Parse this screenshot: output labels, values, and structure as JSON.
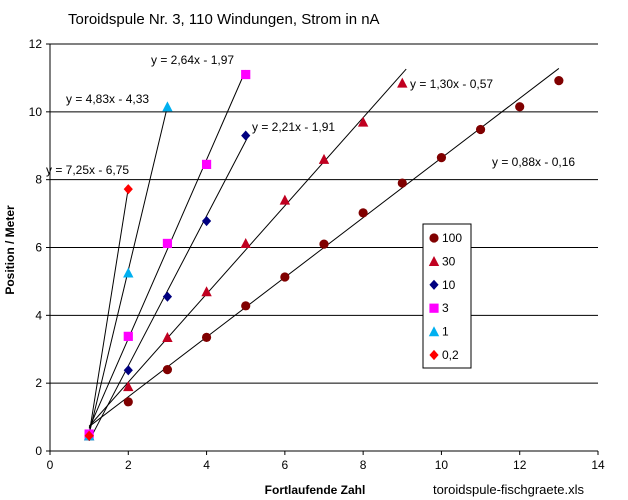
{
  "chart_data": {
    "type": "scatter",
    "title": "Toroidspule Nr. 3, 110 Windungen, Strom in nA",
    "xlabel": "Fortlaufende Zahl",
    "ylabel": "Position / Meter",
    "xlim": [
      0,
      14
    ],
    "ylim": [
      0,
      12
    ],
    "xticks": [
      0,
      2,
      4,
      6,
      8,
      10,
      12,
      14
    ],
    "yticks": [
      0,
      2,
      4,
      6,
      8,
      10,
      12
    ],
    "grid": "horizontal",
    "legend_position": "right-center",
    "footer": "toroidspule-fischgraete.xls",
    "series": [
      {
        "name": "100",
        "marker": "circle",
        "color": "#800000",
        "x": [
          1,
          2,
          3,
          4,
          5,
          6,
          7,
          8,
          9,
          10,
          11,
          12,
          13
        ],
        "y": [
          0.45,
          1.45,
          2.4,
          3.35,
          4.28,
          5.13,
          6.1,
          7.02,
          7.9,
          8.65,
          9.48,
          10.15,
          10.92
        ],
        "trendline": {
          "equation": "y = 0,88x - 0,16",
          "slope": 0.88,
          "intercept": -0.16,
          "x_range": [
            1,
            13.0
          ]
        }
      },
      {
        "name": "30",
        "marker": "triangle",
        "color": "#c00020",
        "x": [
          1,
          2,
          3,
          4,
          5,
          6,
          7,
          8,
          9
        ],
        "y": [
          0.45,
          1.9,
          3.35,
          4.7,
          6.12,
          7.4,
          8.6,
          9.7,
          10.85
        ],
        "trendline": {
          "equation": "y = 1,30x - 0,57",
          "slope": 1.3,
          "intercept": -0.57,
          "x_range": [
            1,
            9.1
          ]
        }
      },
      {
        "name": "10",
        "marker": "diamond",
        "color": "#000080",
        "x": [
          1,
          2,
          3,
          4,
          5
        ],
        "y": [
          0.45,
          2.38,
          4.55,
          6.78,
          9.3
        ],
        "trendline": {
          "equation": "y = 2,21x - 1,91",
          "slope": 2.21,
          "intercept": -1.91,
          "x_range": [
            1,
            5.05
          ]
        }
      },
      {
        "name": "3",
        "marker": "square",
        "color": "#ff00ff",
        "x": [
          1,
          2,
          3,
          4,
          5
        ],
        "y": [
          0.5,
          3.38,
          6.12,
          8.45,
          11.1
        ],
        "trendline": {
          "equation": "y = 2,64x - 1,97",
          "slope": 2.64,
          "intercept": -1.97,
          "x_range": [
            1,
            5.0
          ]
        }
      },
      {
        "name": "1",
        "marker": "triangle",
        "color": "#00b0f0",
        "x": [
          1,
          2,
          3
        ],
        "y": [
          0.45,
          5.25,
          10.15
        ],
        "trendline": {
          "equation": "y = 4,83x - 4,33",
          "slope": 4.83,
          "intercept": -4.33,
          "x_range": [
            1,
            3.0
          ]
        }
      },
      {
        "name": "0,2",
        "marker": "diamond",
        "color": "#ff0000",
        "x": [
          1,
          2
        ],
        "y": [
          0.45,
          7.72
        ],
        "trendline": {
          "equation": "y = 7,25x - 6,75",
          "slope": 7.25,
          "intercept": -6.75,
          "x_range": [
            1,
            2.0
          ]
        }
      }
    ]
  }
}
